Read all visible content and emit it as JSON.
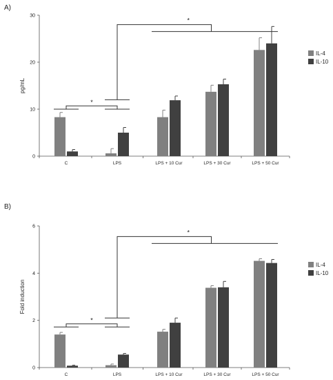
{
  "colors": {
    "il4": "#808080",
    "il10": "#404040",
    "axis": "#555555",
    "bracket": "#333333"
  },
  "chart_data": [
    {
      "type": "bar",
      "panel_label": "A)",
      "ylabel": "pg/mL",
      "ylim": [
        0,
        30
      ],
      "yticks": [
        "0",
        "10",
        "20",
        "30"
      ],
      "yticks_values": [
        0,
        10,
        20,
        30
      ],
      "categories": [
        "C",
        "LPS",
        "LPS + 10 Cur",
        "LPS + 30 Cur",
        "LPS + 50 Cur"
      ],
      "series": [
        {
          "name": "IL-4",
          "values": [
            8.3,
            0.6,
            8.3,
            13.7,
            22.6
          ],
          "errors": [
            1.0,
            1.0,
            1.5,
            1.4,
            2.6
          ]
        },
        {
          "name": "IL-10",
          "values": [
            1.0,
            5.0,
            11.9,
            15.3,
            24.0
          ],
          "errors": [
            0.4,
            1.1,
            0.9,
            1.1,
            3.6
          ]
        }
      ],
      "significance": [
        "*",
        "*"
      ],
      "legend": "right"
    },
    {
      "type": "bar",
      "panel_label": "B)",
      "ylabel": "Fold induction",
      "ylim": [
        0,
        6
      ],
      "yticks": [
        "0",
        "2",
        "4",
        "6"
      ],
      "yticks_values": [
        0,
        2,
        4,
        6
      ],
      "categories": [
        "C",
        "LPS",
        "LPS + 10 Cur",
        "LPS + 30 Cur",
        "LPS + 50 Cur"
      ],
      "series": [
        {
          "name": "IL-4",
          "values": [
            1.4,
            0.1,
            1.52,
            3.38,
            4.52
          ],
          "errors": [
            0.09,
            0.05,
            0.1,
            0.09,
            0.09
          ]
        },
        {
          "name": "IL-10",
          "values": [
            0.08,
            0.55,
            1.9,
            3.4,
            4.43
          ],
          "errors": [
            0.02,
            0.05,
            0.2,
            0.25,
            0.15
          ]
        }
      ],
      "significance": [
        "*",
        "*"
      ],
      "legend": "right"
    }
  ]
}
